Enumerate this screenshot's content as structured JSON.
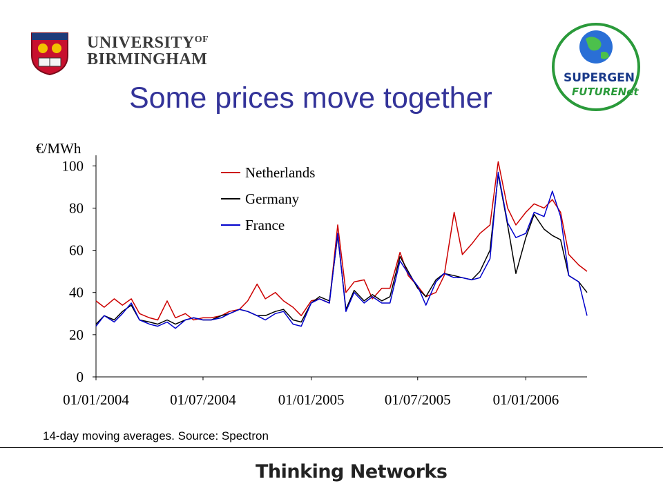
{
  "header": {
    "university_line1": "UNIVERSITY",
    "university_of": "OF",
    "university_line2": "BIRMINGHAM",
    "partner_line1": "SUPERGEN",
    "partner_line2": "FUTURENet"
  },
  "slide": {
    "title": "Some prices move together",
    "footnote": "14-day moving averages.  Source: Spectron",
    "tagline": "Thinking Networks"
  },
  "colors": {
    "title": "#333399",
    "netherlands": "#cc0000",
    "germany": "#000000",
    "france": "#0000cc"
  },
  "chart_data": {
    "type": "line",
    "title": "",
    "ylabel": "€/MWh",
    "xlabel": "",
    "ylim": [
      0,
      105
    ],
    "yticks": [
      "0",
      "20",
      "40",
      "60",
      "80",
      "100"
    ],
    "xticks": [
      "01/01/2004",
      "01/07/2004",
      "01/01/2005",
      "01/07/2005",
      "01/01/2006"
    ],
    "xlim": [
      "2004-01-01",
      "2006-04-15"
    ],
    "legend_position": "top-left",
    "grid": false,
    "x": [
      "2004-01-01",
      "2004-01-15",
      "2004-02-01",
      "2004-02-15",
      "2004-03-01",
      "2004-03-15",
      "2004-04-01",
      "2004-04-15",
      "2004-05-01",
      "2004-05-15",
      "2004-06-01",
      "2004-06-15",
      "2004-07-01",
      "2004-07-15",
      "2004-08-01",
      "2004-08-15",
      "2004-09-01",
      "2004-09-15",
      "2004-10-01",
      "2004-10-15",
      "2004-11-01",
      "2004-11-15",
      "2004-12-01",
      "2004-12-15",
      "2005-01-01",
      "2005-01-15",
      "2005-02-01",
      "2005-02-15",
      "2005-03-01",
      "2005-03-15",
      "2005-04-01",
      "2005-04-15",
      "2005-05-01",
      "2005-05-15",
      "2005-06-01",
      "2005-06-15",
      "2005-07-01",
      "2005-07-15",
      "2005-08-01",
      "2005-08-15",
      "2005-09-01",
      "2005-09-15",
      "2005-10-01",
      "2005-10-15",
      "2005-11-01",
      "2005-11-15",
      "2005-12-01",
      "2005-12-15",
      "2006-01-01",
      "2006-01-15",
      "2006-02-01",
      "2006-02-15",
      "2006-03-01",
      "2006-03-15",
      "2006-04-01",
      "2006-04-15"
    ],
    "series": [
      {
        "name": "Netherlands",
        "values": [
          36,
          33,
          37,
          34,
          37,
          30,
          28,
          27,
          36,
          28,
          30,
          27,
          28,
          28,
          29,
          31,
          32,
          36,
          44,
          37,
          40,
          36,
          33,
          29,
          36,
          37,
          35,
          72,
          40,
          45,
          46,
          37,
          42,
          42,
          59,
          48,
          43,
          38,
          40,
          48,
          78,
          58,
          63,
          68,
          72,
          102,
          80,
          72,
          78,
          82,
          80,
          84,
          78,
          58,
          53,
          50
        ]
      },
      {
        "name": "Germany",
        "values": [
          25,
          29,
          27,
          31,
          34,
          27,
          26,
          25,
          27,
          25,
          27,
          28,
          27,
          27,
          29,
          30,
          32,
          31,
          29,
          29,
          31,
          32,
          27,
          26,
          35,
          38,
          36,
          67,
          32,
          41,
          36,
          39,
          36,
          38,
          57,
          50,
          42,
          38,
          46,
          49,
          48,
          47,
          46,
          50,
          60,
          96,
          72,
          49,
          66,
          77,
          70,
          67,
          65,
          48,
          45,
          40
        ]
      },
      {
        "name": "France",
        "values": [
          24,
          29,
          26,
          30,
          35,
          27,
          25,
          24,
          26,
          23,
          27,
          28,
          27,
          27,
          28,
          30,
          32,
          31,
          29,
          27,
          30,
          31,
          25,
          24,
          35,
          37,
          35,
          68,
          31,
          40,
          35,
          38,
          35,
          35,
          55,
          49,
          43,
          34,
          45,
          49,
          47,
          47,
          46,
          47,
          56,
          97,
          73,
          66,
          68,
          78,
          76,
          88,
          76,
          48,
          45,
          29
        ]
      }
    ]
  }
}
